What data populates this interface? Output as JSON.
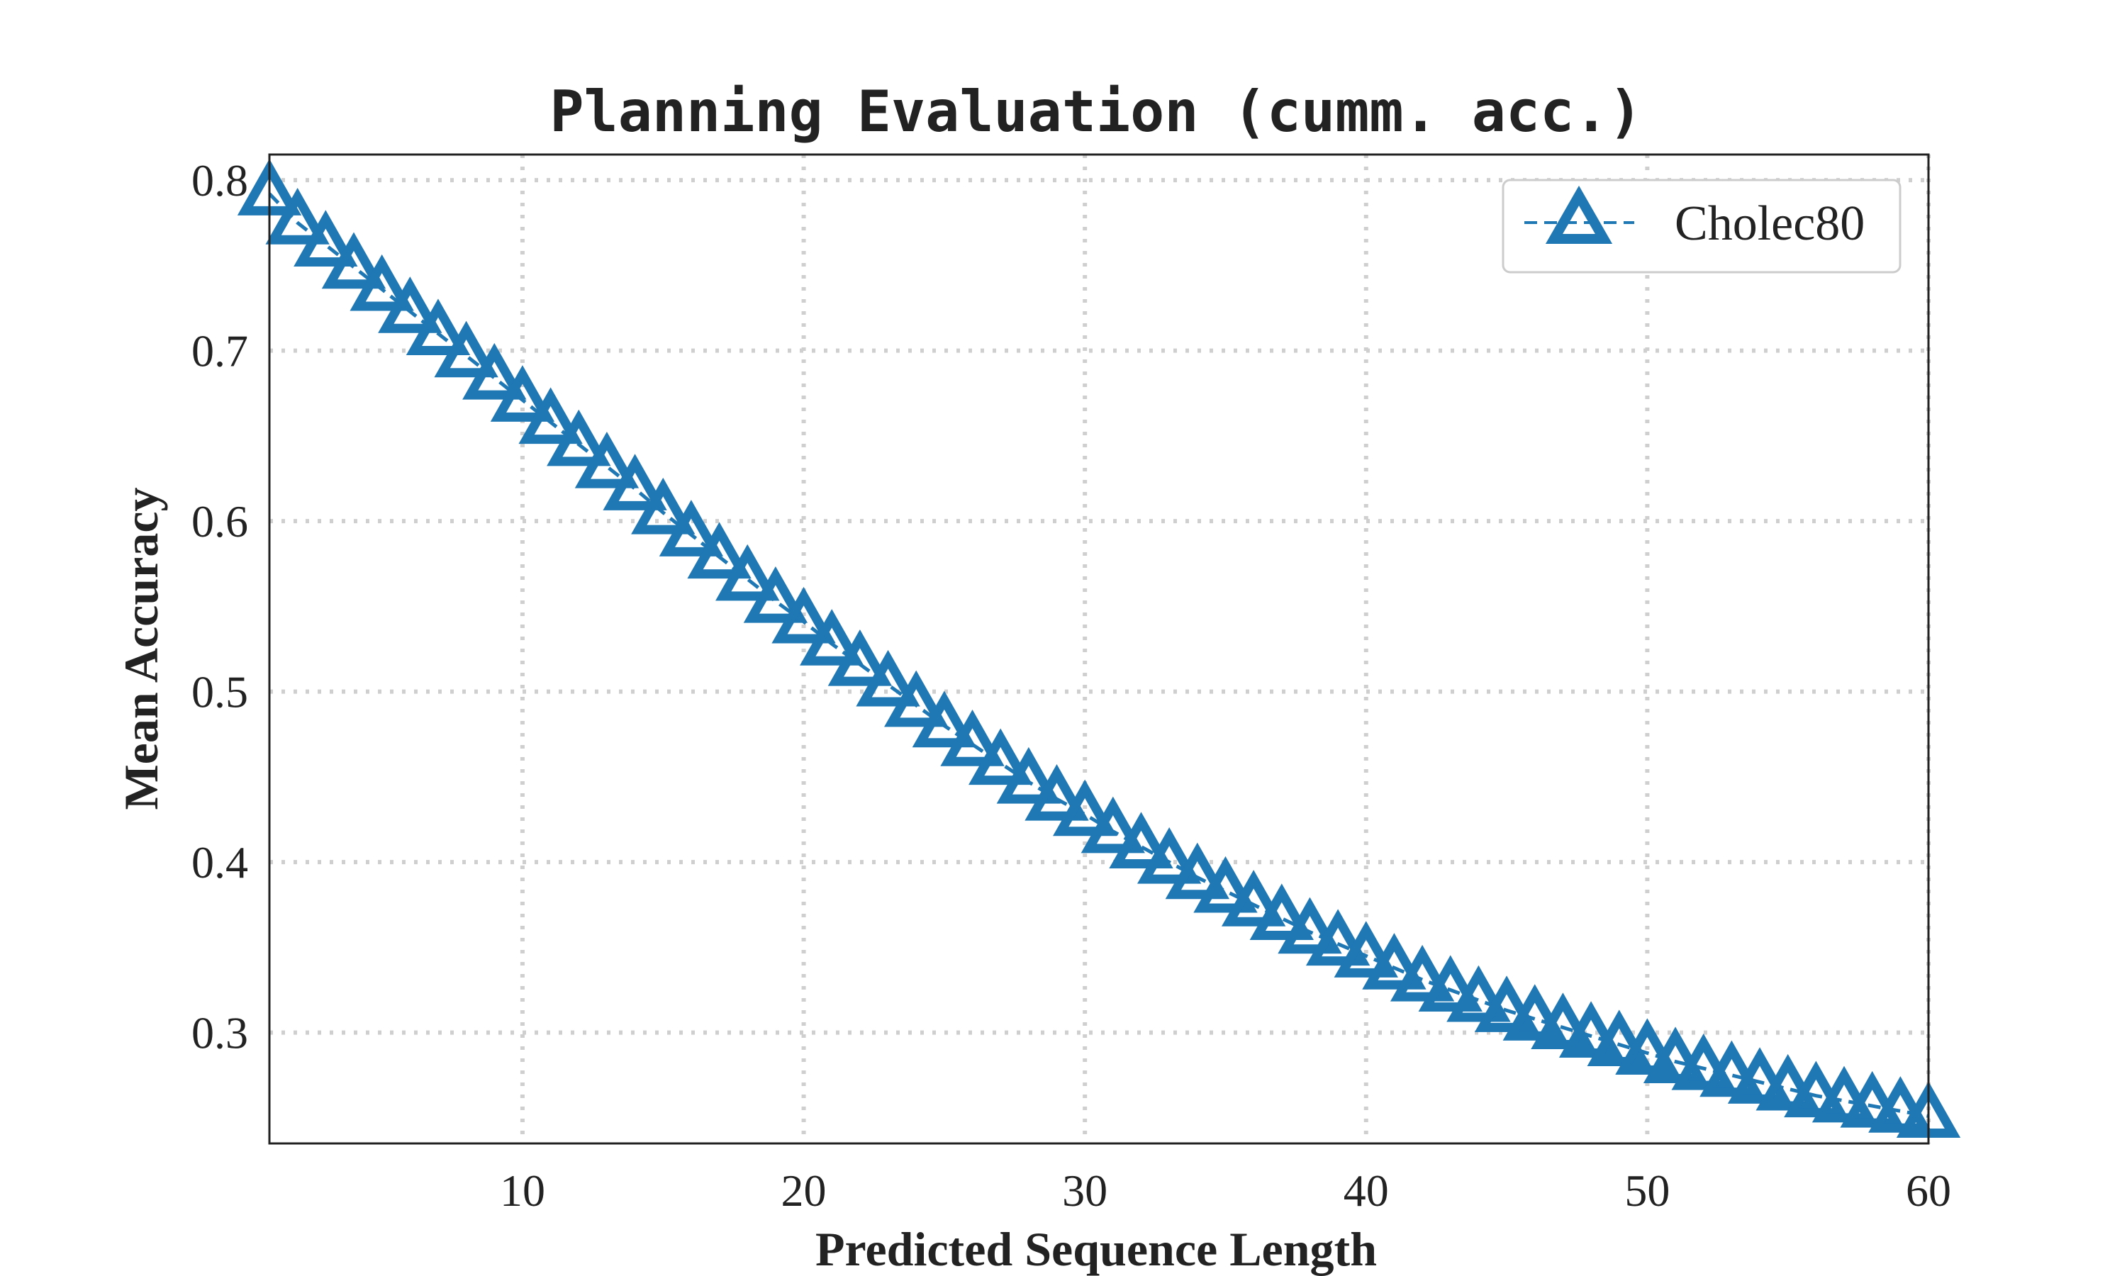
{
  "chart_data": {
    "type": "line",
    "title": "Planning Evaluation (cumm. acc.)",
    "xlabel": "Predicted Sequence Length",
    "ylabel": "Mean Accuracy",
    "xlim": [
      1,
      60
    ],
    "ylim": [
      0.235,
      0.815
    ],
    "xticks": [
      10,
      20,
      30,
      40,
      50,
      60
    ],
    "yticks": [
      0.3,
      0.4,
      0.5,
      0.6,
      0.7,
      0.8
    ],
    "xtick_labels": [
      "10",
      "20",
      "30",
      "40",
      "50",
      "60"
    ],
    "ytick_labels": [
      "0.3",
      "0.4",
      "0.5",
      "0.6",
      "0.7",
      "0.8"
    ],
    "grid": true,
    "legend_position": "top-right",
    "marker": "triangle-up",
    "color": "#1f77b4",
    "series": [
      {
        "name": "Cholec80",
        "x": [
          1,
          2,
          3,
          4,
          5,
          6,
          7,
          8,
          9,
          10,
          11,
          12,
          13,
          14,
          15,
          16,
          17,
          18,
          19,
          20,
          21,
          22,
          23,
          24,
          25,
          26,
          27,
          28,
          29,
          30,
          31,
          32,
          33,
          34,
          35,
          36,
          37,
          38,
          39,
          40,
          41,
          42,
          43,
          44,
          45,
          46,
          47,
          48,
          49,
          50,
          51,
          52,
          53,
          54,
          55,
          56,
          57,
          58,
          59,
          60
        ],
        "values": [
          0.792,
          0.775,
          0.762,
          0.749,
          0.736,
          0.723,
          0.71,
          0.697,
          0.684,
          0.671,
          0.658,
          0.645,
          0.632,
          0.619,
          0.605,
          0.592,
          0.579,
          0.566,
          0.553,
          0.541,
          0.528,
          0.516,
          0.504,
          0.492,
          0.48,
          0.469,
          0.458,
          0.447,
          0.437,
          0.428,
          0.418,
          0.409,
          0.4,
          0.391,
          0.383,
          0.375,
          0.367,
          0.359,
          0.352,
          0.345,
          0.338,
          0.331,
          0.325,
          0.319,
          0.313,
          0.308,
          0.303,
          0.298,
          0.293,
          0.288,
          0.283,
          0.279,
          0.275,
          0.271,
          0.267,
          0.263,
          0.26,
          0.257,
          0.254,
          0.251
        ]
      }
    ]
  }
}
